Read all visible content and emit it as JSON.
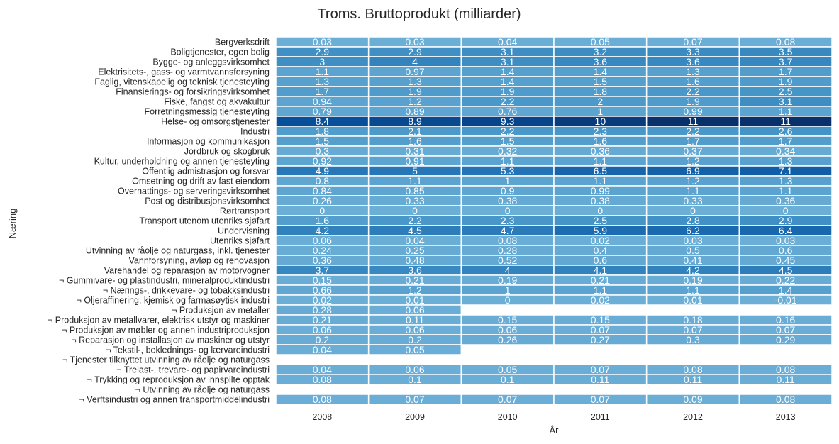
{
  "chart_data": {
    "type": "heatmap",
    "title": "Troms. Bruttoprodukt (milliarder)",
    "xlabel": "År",
    "ylabel": "Næring",
    "x": [
      "2008",
      "2009",
      "2010",
      "2011",
      "2012",
      "2013"
    ],
    "rows": [
      "Bergverksdrift",
      "Boligtjenester, egen bolig",
      "Bygge- og anleggsvirksomhet",
      "Elektrisitets-, gass- og varmtvannsforsyning",
      "Faglig, vitenskapelig og teknisk tjenesteyting",
      "Finansierings- og forsikringsvirksomhet",
      "Fiske, fangst og akvakultur",
      "Forretningsmessig tjenesteyting",
      "Helse- og omsorgstjenester",
      "Industri",
      "Informasjon og kommunikasjon",
      "Jordbruk og skogbruk",
      "Kultur, underholdning og annen tjenesteyting",
      "Offentlig admistrasjon og forsvar",
      "Omsetning og drift av fast eiendom",
      "Overnattings- og serveringsvirksomhet",
      "Post og distribusjonsvirksomhet",
      "Rørtransport",
      "Transport utenom utenriks sjøfart",
      "Undervisning",
      "Utenriks sjøfart",
      "Utvinning av råolje og naturgass, inkl. tjenester",
      "Vannforsyning, avløp og renovasjon",
      "Varehandel og reparasjon av motorvogner",
      "¬ Gummivare- og plastindustri, mineralproduktindustri",
      "¬ Nærings-, drikkevare- og tobakksindustri",
      "¬ Oljeraffinering, kjemisk og farmasøytisk industri",
      "¬ Produksjon av metaller",
      "¬ Produksjon av metallvarer, elektrisk utstyr og maskiner",
      "¬ Produksjon av møbler og annen industriproduksjon",
      "¬ Reparasjon og installasjon av maskiner og utstyr",
      "¬ Tekstil-, beklednings- og lærvareindustri",
      "¬ Tjenester tilknyttet utvinning av råolje og naturgass",
      "¬ Trelast-, trevare- og papirvareindustri",
      "¬ Trykking og reproduksjon av innspilte opptak",
      "¬ Utvinning av råolje og naturgass",
      "¬ Verftsindustri og annen transportmiddelindustri"
    ],
    "values": [
      [
        0.03,
        0.03,
        0.04,
        0.05,
        0.07,
        0.08
      ],
      [
        2.9,
        2.9,
        3.1,
        3.2,
        3.3,
        3.5
      ],
      [
        3,
        4,
        3.1,
        3.6,
        3.6,
        3.7
      ],
      [
        1.1,
        0.97,
        1.4,
        1.4,
        1.3,
        1.7
      ],
      [
        1.3,
        1.3,
        1.4,
        1.5,
        1.6,
        1.9
      ],
      [
        1.7,
        1.9,
        1.9,
        1.8,
        2.2,
        2.5
      ],
      [
        0.94,
        1.2,
        2.2,
        2,
        1.9,
        3.1
      ],
      [
        0.79,
        0.89,
        0.76,
        1,
        0.99,
        1.1
      ],
      [
        8.4,
        8.9,
        9.3,
        10,
        11,
        11
      ],
      [
        1.8,
        2.1,
        2.2,
        2.3,
        2.2,
        2.6
      ],
      [
        1.5,
        1.6,
        1.5,
        1.6,
        1.7,
        1.7
      ],
      [
        0.3,
        0.31,
        0.32,
        0.36,
        0.37,
        0.34
      ],
      [
        0.92,
        0.91,
        1.1,
        1.1,
        1.2,
        1.3
      ],
      [
        4.9,
        5,
        5.3,
        6.5,
        6.9,
        7.1
      ],
      [
        0.8,
        1.1,
        1,
        1.1,
        1.2,
        1.3
      ],
      [
        0.84,
        0.85,
        0.9,
        0.99,
        1.1,
        1.1
      ],
      [
        0.26,
        0.33,
        0.38,
        0.38,
        0.33,
        0.36
      ],
      [
        0,
        0,
        0,
        0,
        0,
        0
      ],
      [
        1.6,
        2.2,
        2.3,
        2.5,
        2.8,
        2.9
      ],
      [
        4.2,
        4.5,
        4.7,
        5.9,
        6.2,
        6.4
      ],
      [
        0.06,
        0.04,
        0.08,
        0.02,
        0.03,
        0.03
      ],
      [
        0.24,
        0.25,
        0.28,
        0.4,
        0.5,
        0.6
      ],
      [
        0.36,
        0.48,
        0.52,
        0.6,
        0.41,
        0.45
      ],
      [
        3.7,
        3.6,
        4,
        4.1,
        4.2,
        4.5
      ],
      [
        0.15,
        0.21,
        0.19,
        0.21,
        0.19,
        0.22
      ],
      [
        0.66,
        1.2,
        1,
        1.1,
        1.1,
        1.4
      ],
      [
        0.02,
        0.01,
        0,
        0.02,
        0.01,
        -0.01
      ],
      [
        0.28,
        0.06,
        null,
        null,
        null,
        null
      ],
      [
        0.21,
        0.11,
        0.15,
        0.15,
        0.18,
        0.16
      ],
      [
        0.06,
        0.06,
        0.06,
        0.07,
        0.07,
        0.07
      ],
      [
        0.2,
        0.2,
        0.26,
        0.27,
        0.3,
        0.29
      ],
      [
        0.04,
        0.05,
        null,
        null,
        null,
        null
      ],
      [
        null,
        null,
        null,
        null,
        null,
        null
      ],
      [
        0.04,
        0.06,
        0.05,
        0.07,
        0.08,
        0.08
      ],
      [
        0.08,
        0.1,
        0.1,
        0.11,
        0.11,
        0.11
      ],
      [
        null,
        null,
        null,
        null,
        null,
        null
      ],
      [
        0.08,
        0.07,
        0.07,
        0.07,
        0.09,
        0.08
      ]
    ],
    "colormap": "Blues",
    "vmin": 0,
    "vmax": 11,
    "grid": false,
    "annotations": true
  }
}
